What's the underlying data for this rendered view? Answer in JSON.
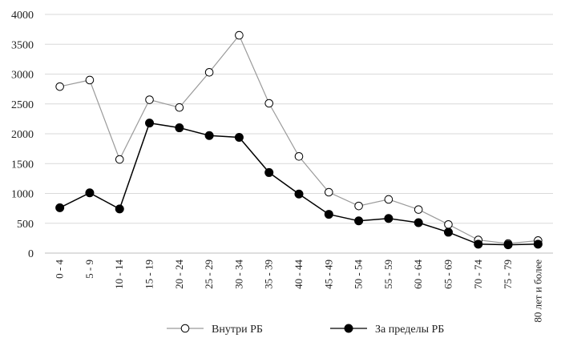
{
  "chart_data": {
    "type": "line",
    "categories": [
      "0 - 4",
      "5 - 9",
      "10 - 14",
      "15 - 19",
      "20 - 24",
      "25 - 29",
      "30 - 34",
      "35 - 39",
      "40 - 44",
      "45 - 49",
      "50 - 54",
      "55 - 59",
      "60 - 64",
      "65 - 69",
      "70 - 74",
      "75 - 79",
      "80 лет и более"
    ],
    "series": [
      {
        "name": "Внутри РБ",
        "marker": "open-circle",
        "color": "#9a9a9a",
        "values": [
          2790,
          2900,
          1570,
          2570,
          2440,
          3030,
          3650,
          2510,
          1620,
          1020,
          790,
          900,
          730,
          480,
          220,
          160,
          210
        ]
      },
      {
        "name": "За пределы РБ",
        "marker": "filled-circle",
        "color": "#000000",
        "values": [
          760,
          1010,
          740,
          2180,
          2100,
          1970,
          1940,
          1350,
          990,
          650,
          540,
          580,
          510,
          350,
          150,
          140,
          150
        ]
      }
    ],
    "y_ticks": [
      0,
      500,
      1000,
      1500,
      2000,
      2500,
      3000,
      3500,
      4000
    ],
    "ylim": [
      0,
      4000
    ],
    "grid": true,
    "legend_position": "bottom"
  }
}
